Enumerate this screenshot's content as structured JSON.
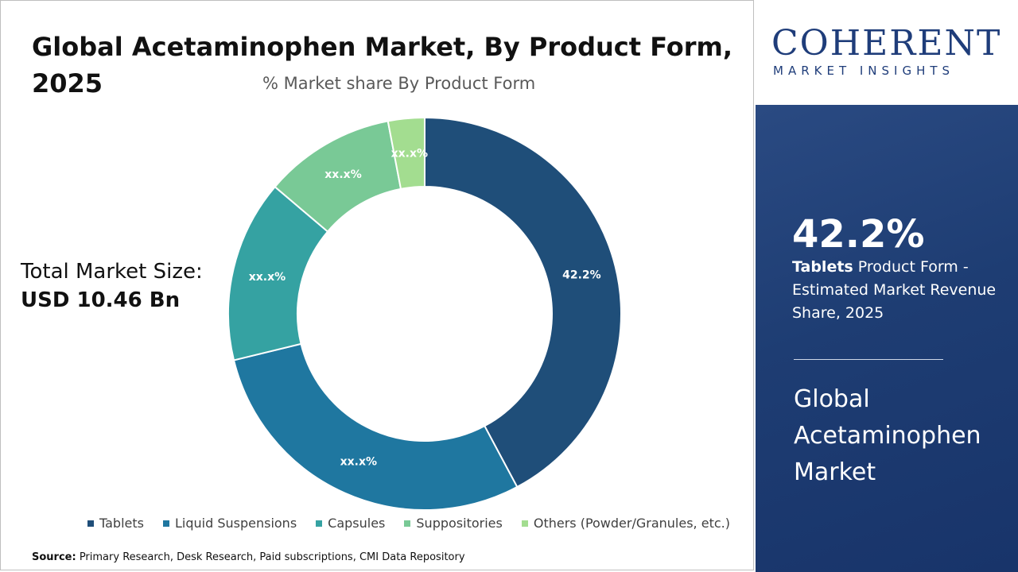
{
  "header": {
    "title": "Global Acetaminophen Market, By Product Form, 2025",
    "subtitle": "% Market share By Product Form"
  },
  "total": {
    "label": "Total Market Size:",
    "value": "USD 10.46 Bn"
  },
  "chart_data": {
    "type": "pie",
    "title": "Global Acetaminophen Market, By Product Form, 2025",
    "subtitle": "% Market share By Product Form",
    "categories": [
      "Tablets",
      "Liquid Suspensions",
      "Capsules",
      "Suppositories",
      "Others (Powder/Granules, etc.)"
    ],
    "values": [
      42.2,
      29.0,
      15.0,
      10.8,
      3.0
    ],
    "data_labels": [
      "42.2%",
      "xx.x%",
      "xx.x%",
      "xx.x%",
      "xx.x%"
    ],
    "colors": [
      "#1f4e79",
      "#1f77a0",
      "#35a2a2",
      "#79c996",
      "#a3dd90"
    ],
    "donut": true,
    "legend_position": "bottom"
  },
  "source": {
    "prefix": "Source:",
    "text": " Primary Research, Desk Research, Paid subscriptions, CMI Data Repository"
  },
  "logo": {
    "main": "COHERENT",
    "sub": "MARKET INSIGHTS"
  },
  "panel": {
    "highlight_value": "42.2%",
    "highlight_bold": "Tablets",
    "highlight_text": " Product Form - Estimated Market Revenue Share, 2025",
    "market_name": "Global Acetaminophen Market"
  }
}
